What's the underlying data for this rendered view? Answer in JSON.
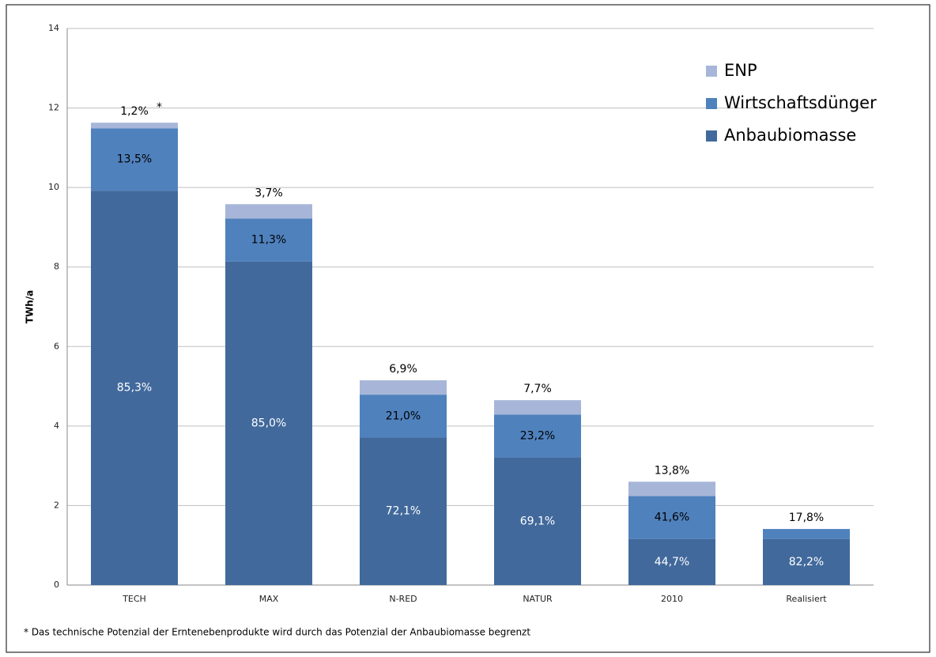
{
  "chart_data": {
    "type": "bar",
    "stacked": true,
    "y_label": "TWh/a",
    "categories": [
      "TECH",
      "MAX",
      "N-RED",
      "NATUR",
      "2010",
      "Realisiert"
    ],
    "series": [
      {
        "name": "Anbaubiomasse",
        "color": "#41699c",
        "values": [
          9.92,
          8.14,
          3.71,
          3.21,
          1.16,
          1.16
        ],
        "share_labels": [
          "85,3%",
          "85,0%",
          "72,1%",
          "69,1%",
          "44,7%",
          "82,2%"
        ]
      },
      {
        "name": "Wirtschaftsdünger",
        "color": "#4f81bd",
        "values": [
          1.57,
          1.08,
          1.08,
          1.08,
          1.08,
          0.25
        ],
        "share_labels": [
          "13,5%",
          "11,3%",
          "21,0%",
          "23,2%",
          "41,6%",
          "17,8%"
        ]
      },
      {
        "name": "ENP",
        "color": "#a7b6d8",
        "values": [
          0.14,
          0.36,
          0.36,
          0.36,
          0.36,
          null
        ],
        "share_labels": [
          "1,2%",
          "3,7%",
          "6,9%",
          "7,7%",
          "13,8%",
          null
        ]
      }
    ],
    "footnote_marker": "*",
    "footnote": "* Das technische Potenzial der Erntenebenprodukte wird durch das Potenzial der Anbaubiomasse begrenzt",
    "ylim": [
      0,
      14
    ],
    "yticks": [
      0,
      2,
      4,
      6,
      8,
      10,
      12,
      14
    ],
    "grid": true,
    "legend": "top-right"
  }
}
